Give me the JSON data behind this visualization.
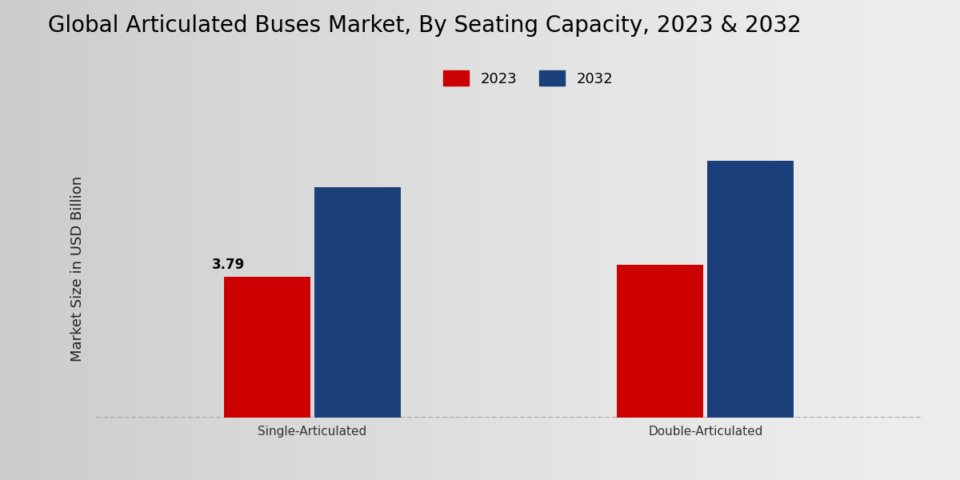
{
  "title": "Global Articulated Buses Market, By Seating Capacity, 2023 & 2032",
  "categories": [
    "Single-Articulated",
    "Double-Articulated"
  ],
  "series": [
    {
      "label": "2023",
      "values": [
        3.79,
        4.1
      ],
      "color": "#cc0000"
    },
    {
      "label": "2032",
      "values": [
        6.2,
        6.9
      ],
      "color": "#1a3f7a"
    }
  ],
  "ylabel": "Market Size in USD Billion",
  "bar_annotation_text": "3.79",
  "bar_annotation_series": 0,
  "bar_annotation_category": 0,
  "bg_color_top": "#f5f5f5",
  "bg_color_bottom": "#d8d8d8",
  "ylim": [
    0,
    8.0
  ],
  "bar_width": 0.22,
  "title_fontsize": 20,
  "axis_label_fontsize": 13,
  "tick_label_fontsize": 11,
  "red_footer_color": "#cc0000",
  "annotation_fontsize": 12,
  "annotation_fontweight": "bold"
}
